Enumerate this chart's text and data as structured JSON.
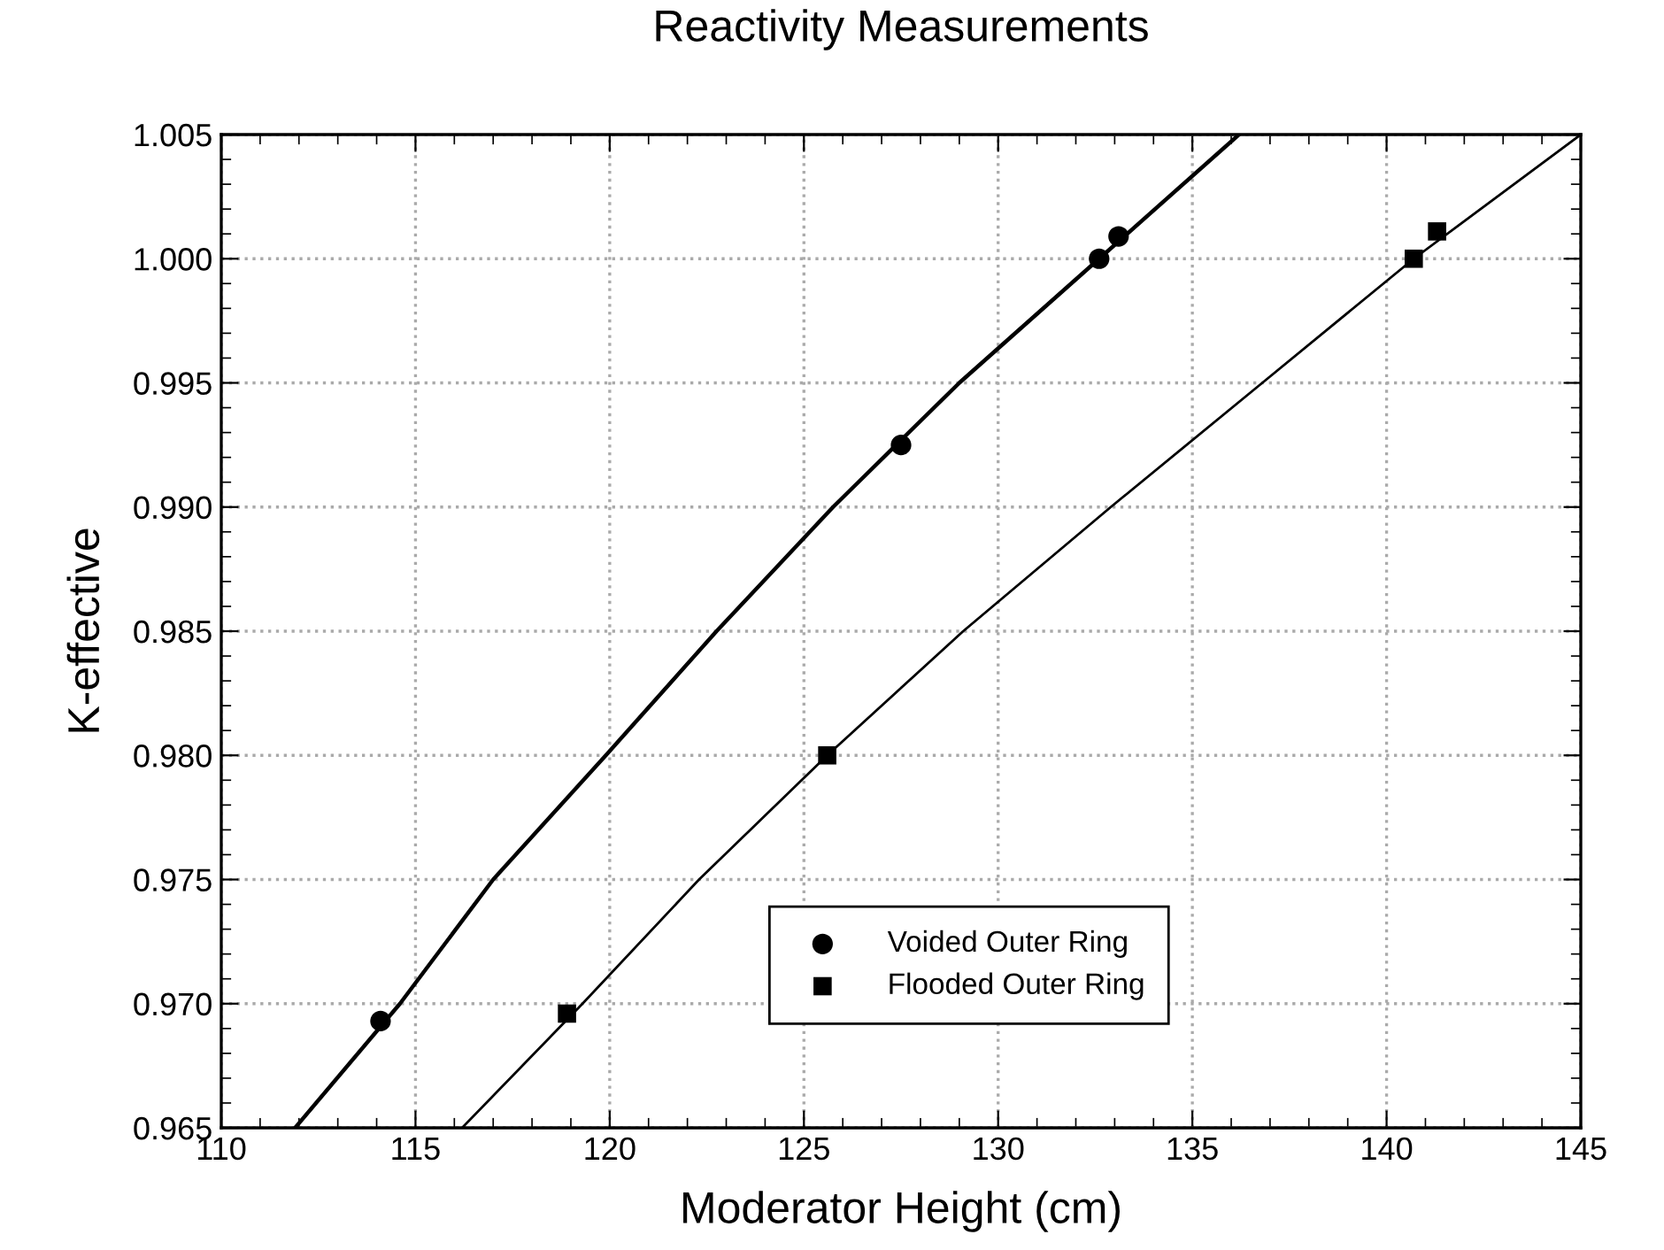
{
  "chart_data": {
    "type": "scatter",
    "title": "Reactivity Measurements",
    "xlabel": "Moderator Height (cm)",
    "ylabel": "K-effective",
    "xlim": [
      110,
      145
    ],
    "xticks": [
      110,
      115,
      120,
      125,
      130,
      135,
      140,
      145
    ],
    "ylim": [
      0.965,
      1.005
    ],
    "yticks": [
      {
        "value": 0.965,
        "label": "0.965"
      },
      {
        "value": 0.97,
        "label": "0.970"
      },
      {
        "value": 0.975,
        "label": "0.975"
      },
      {
        "value": 0.98,
        "label": "0.980"
      },
      {
        "value": 0.985,
        "label": "0.985"
      },
      {
        "value": 0.99,
        "label": "0.990"
      },
      {
        "value": 0.995,
        "label": "0.995"
      },
      {
        "value": 1.0,
        "label": "1.000"
      },
      {
        "value": 1.005,
        "label": "1.005"
      }
    ],
    "grid": true,
    "legend": "bottom",
    "series": [
      {
        "name": "Voided Outer Ring",
        "color": "#000000",
        "marker": "circle",
        "x": [
          114.1,
          127.5,
          132.6,
          133.1
        ],
        "values": [
          0.9693,
          0.9925,
          1.0,
          1.0009
        ]
      },
      {
        "name": "Flooded Outer Ring",
        "color": "#000000",
        "marker": "square",
        "x": [
          118.9,
          125.6,
          140.7,
          141.3
        ],
        "values": [
          0.9696,
          0.98,
          1.0,
          1.0011
        ]
      },
      {
        "type": "line",
        "color": "#000000",
        "marker": "none",
        "x": [
          111.9,
          114.6,
          117.0,
          119.9,
          122.75,
          125.75,
          129.0,
          132.6,
          136.2
        ],
        "values": [
          0.965,
          0.97,
          0.975,
          0.98,
          0.985,
          0.99,
          0.995,
          1.0,
          1.005
        ]
      },
      {
        "type": "line",
        "color": "#000000",
        "marker": "none",
        "x": [
          116.2,
          119.3,
          122.3,
          125.6,
          129.1,
          132.9,
          136.8,
          140.7,
          145.0
        ],
        "values": [
          0.965,
          0.97,
          0.975,
          0.98,
          0.985,
          0.99,
          0.995,
          1.0,
          1.005
        ]
      }
    ]
  }
}
